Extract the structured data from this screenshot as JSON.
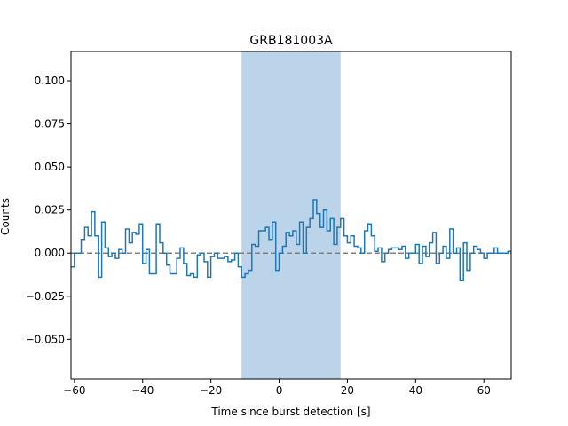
{
  "chart_data": {
    "type": "line",
    "title": "GRB181003A",
    "xlabel": "Time since burst detection [s]",
    "ylabel": "Counts",
    "xlim": [
      -61,
      68
    ],
    "ylim": [
      -0.073,
      0.117
    ],
    "xticks": [
      -60,
      -40,
      -20,
      0,
      20,
      40,
      60
    ],
    "xtick_labels": [
      "−60",
      "−40",
      "−20",
      "0",
      "20",
      "40",
      "60"
    ],
    "yticks": [
      -0.05,
      -0.025,
      0.0,
      0.025,
      0.05,
      0.075,
      0.1
    ],
    "ytick_labels": [
      "−0.050",
      "−0.025",
      "0.000",
      "0.025",
      "0.050",
      "0.075",
      "0.100"
    ],
    "highlight_span": [
      -11,
      18
    ],
    "zero_line": 0,
    "grid": false,
    "step_x": [
      -61,
      -60,
      -59,
      -58,
      -57,
      -56,
      -55,
      -54,
      -53,
      -52,
      -51,
      -50,
      -49,
      -48,
      -47,
      -46,
      -45,
      -44,
      -43,
      -42,
      -41,
      -40,
      -39,
      -38,
      -37,
      -36,
      -35,
      -34,
      -33,
      -32,
      -31,
      -30,
      -29,
      -28,
      -27,
      -26,
      -25,
      -24,
      -23,
      -22,
      -21,
      -20,
      -19,
      -18,
      -17,
      -16,
      -15,
      -14,
      -13,
      -12,
      -11,
      -10,
      -9,
      -8,
      -7,
      -6,
      -5,
      -4,
      -3,
      -2,
      -1,
      0,
      1,
      2,
      3,
      4,
      5,
      6,
      7,
      8,
      9,
      10,
      11,
      12,
      13,
      14,
      15,
      16,
      17,
      18,
      19,
      20,
      21,
      22,
      23,
      24,
      25,
      26,
      27,
      28,
      29,
      30,
      31,
      32,
      33,
      34,
      35,
      36,
      37,
      38,
      39,
      40,
      41,
      42,
      43,
      44,
      45,
      46,
      47,
      48,
      49,
      50,
      51,
      52,
      53,
      54,
      55,
      56,
      57,
      58,
      59,
      60,
      61,
      62,
      63,
      64,
      65,
      66,
      67
    ],
    "step_y": [
      -0.008,
      0.0,
      0.0,
      0.008,
      0.015,
      0.01,
      0.024,
      0.01,
      -0.014,
      0.018,
      0.003,
      -0.002,
      0.0,
      -0.003,
      0.002,
      0.0,
      0.014,
      0.006,
      0.012,
      0.011,
      0.017,
      -0.006,
      0.002,
      -0.012,
      -0.012,
      0.017,
      0.006,
      0.0,
      -0.007,
      -0.012,
      -0.012,
      -0.003,
      0.003,
      -0.006,
      -0.013,
      -0.012,
      -0.014,
      -0.001,
      0.0,
      -0.005,
      -0.014,
      -0.002,
      0.0,
      -0.003,
      -0.003,
      -0.002,
      -0.005,
      -0.004,
      0.0,
      -0.008,
      -0.014,
      -0.012,
      -0.01,
      0.005,
      0.004,
      0.013,
      0.013,
      0.015,
      0.008,
      0.018,
      -0.01,
      0.0,
      0.004,
      0.012,
      0.01,
      0.013,
      0.005,
      0.018,
      0.0,
      0.015,
      0.02,
      0.031,
      0.023,
      0.015,
      0.025,
      0.013,
      0.02,
      0.005,
      0.015,
      0.02,
      0.01,
      0.006,
      0.01,
      0.004,
      0.003,
      0.0,
      0.013,
      0.017,
      0.01,
      0.001,
      0.003,
      -0.005,
      0.0,
      0.002,
      0.003,
      0.003,
      0.002,
      0.004,
      -0.003,
      0.0,
      0.0,
      0.005,
      -0.006,
      0.004,
      -0.002,
      0.006,
      0.012,
      -0.006,
      0.0,
      0.004,
      -0.003,
      0.014,
      0.0,
      0.003,
      -0.016,
      0.006,
      -0.01,
      0.0,
      0.004,
      0.002,
      0.0,
      -0.003,
      0.0,
      0.0,
      0.003,
      0.0,
      0.0,
      0.0,
      0.001
    ]
  }
}
